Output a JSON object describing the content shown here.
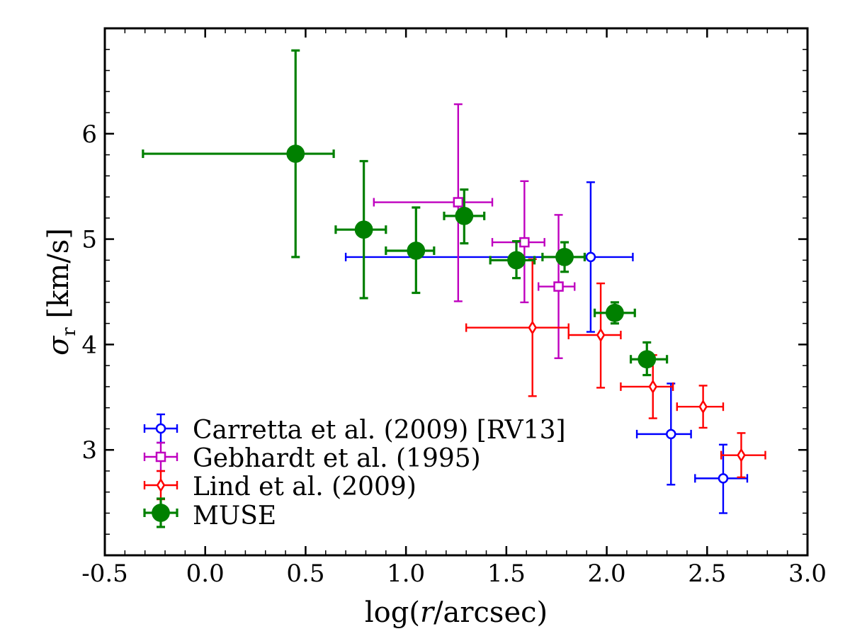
{
  "chart_data": {
    "type": "scatter",
    "title": "",
    "xlabel_parts": [
      "log(",
      "r",
      "/arcsec)"
    ],
    "ylabel_parts": [
      "σ",
      "r",
      " [km/s]"
    ],
    "xlim": [
      -0.5,
      3.0
    ],
    "ylim": [
      2.0,
      7.0
    ],
    "xticks": [
      -0.5,
      0.0,
      0.5,
      1.0,
      1.5,
      2.0,
      2.5,
      3.0
    ],
    "xtick_labels": [
      "-0.5",
      "0.0",
      "0.5",
      "1.0",
      "1.5",
      "2.0",
      "2.5",
      "3.0"
    ],
    "yticks": [
      3,
      4,
      5,
      6
    ],
    "ytick_labels": [
      "3",
      "4",
      "5",
      "6"
    ],
    "grid": false,
    "legend_position": "lower-left",
    "series": [
      {
        "name": "Carretta et al. (2009) [RV13]",
        "color": "#0000ff",
        "marker": "circle-open",
        "points": [
          {
            "x": 1.92,
            "y": 4.83,
            "xerr": [
              1.22,
              0.21
            ],
            "yerr": [
              0.71,
              0.71
            ]
          },
          {
            "x": 2.32,
            "y": 3.15,
            "xerr": [
              0.17,
              0.1
            ],
            "yerr": [
              0.48,
              0.48
            ]
          },
          {
            "x": 2.58,
            "y": 2.73,
            "xerr": [
              0.14,
              0.12
            ],
            "yerr": [
              0.33,
              0.32
            ]
          }
        ]
      },
      {
        "name": "Gebhardt et al. (1995)",
        "color": "#bf00bf",
        "marker": "square-open",
        "points": [
          {
            "x": 1.26,
            "y": 5.35,
            "xerr": [
              0.42,
              0.17
            ],
            "yerr": [
              0.94,
              0.93
            ]
          },
          {
            "x": 1.59,
            "y": 4.97,
            "xerr": [
              0.16,
              0.1
            ],
            "yerr": [
              0.57,
              0.58
            ]
          },
          {
            "x": 1.76,
            "y": 4.55,
            "xerr": [
              0.1,
              0.08
            ],
            "yerr": [
              0.68,
              0.68
            ]
          }
        ]
      },
      {
        "name": "Lind et al. (2009)",
        "color": "#ff0000",
        "marker": "diamond-open",
        "points": [
          {
            "x": 1.63,
            "y": 4.16,
            "xerr": [
              0.33,
              0.18
            ],
            "yerr": [
              0.65,
              0.65
            ]
          },
          {
            "x": 1.97,
            "y": 4.09,
            "xerr": [
              0.16,
              0.1
            ],
            "yerr": [
              0.5,
              0.49
            ]
          },
          {
            "x": 2.23,
            "y": 3.6,
            "xerr": [
              0.16,
              0.1
            ],
            "yerr": [
              0.3,
              0.3
            ]
          },
          {
            "x": 2.48,
            "y": 3.41,
            "xerr": [
              0.13,
              0.1
            ],
            "yerr": [
              0.2,
              0.2
            ]
          },
          {
            "x": 2.67,
            "y": 2.95,
            "xerr": [
              0.1,
              0.12
            ],
            "yerr": [
              0.21,
              0.21
            ]
          }
        ]
      },
      {
        "name": "MUSE",
        "color": "#008000",
        "marker": "circle-filled",
        "points": [
          {
            "x": 0.45,
            "y": 5.81,
            "xerr": [
              0.76,
              0.19
            ],
            "yerr": [
              0.98,
              0.98
            ]
          },
          {
            "x": 0.79,
            "y": 5.09,
            "xerr": [
              0.14,
              0.11
            ],
            "yerr": [
              0.65,
              0.65
            ]
          },
          {
            "x": 1.05,
            "y": 4.89,
            "xerr": [
              0.15,
              0.09
            ],
            "yerr": [
              0.4,
              0.41
            ]
          },
          {
            "x": 1.29,
            "y": 5.22,
            "xerr": [
              0.1,
              0.1
            ],
            "yerr": [
              0.26,
              0.25
            ]
          },
          {
            "x": 1.55,
            "y": 4.8,
            "xerr": [
              0.13,
              0.09
            ],
            "yerr": [
              0.17,
              0.18
            ]
          },
          {
            "x": 1.79,
            "y": 4.83,
            "xerr": [
              0.11,
              0.1
            ],
            "yerr": [
              0.14,
              0.14
            ]
          },
          {
            "x": 2.04,
            "y": 4.3,
            "xerr": [
              0.1,
              0.1
            ],
            "yerr": [
              0.1,
              0.1
            ]
          },
          {
            "x": 2.2,
            "y": 3.86,
            "xerr": [
              0.08,
              0.1
            ],
            "yerr": [
              0.15,
              0.16
            ]
          }
        ]
      }
    ]
  }
}
